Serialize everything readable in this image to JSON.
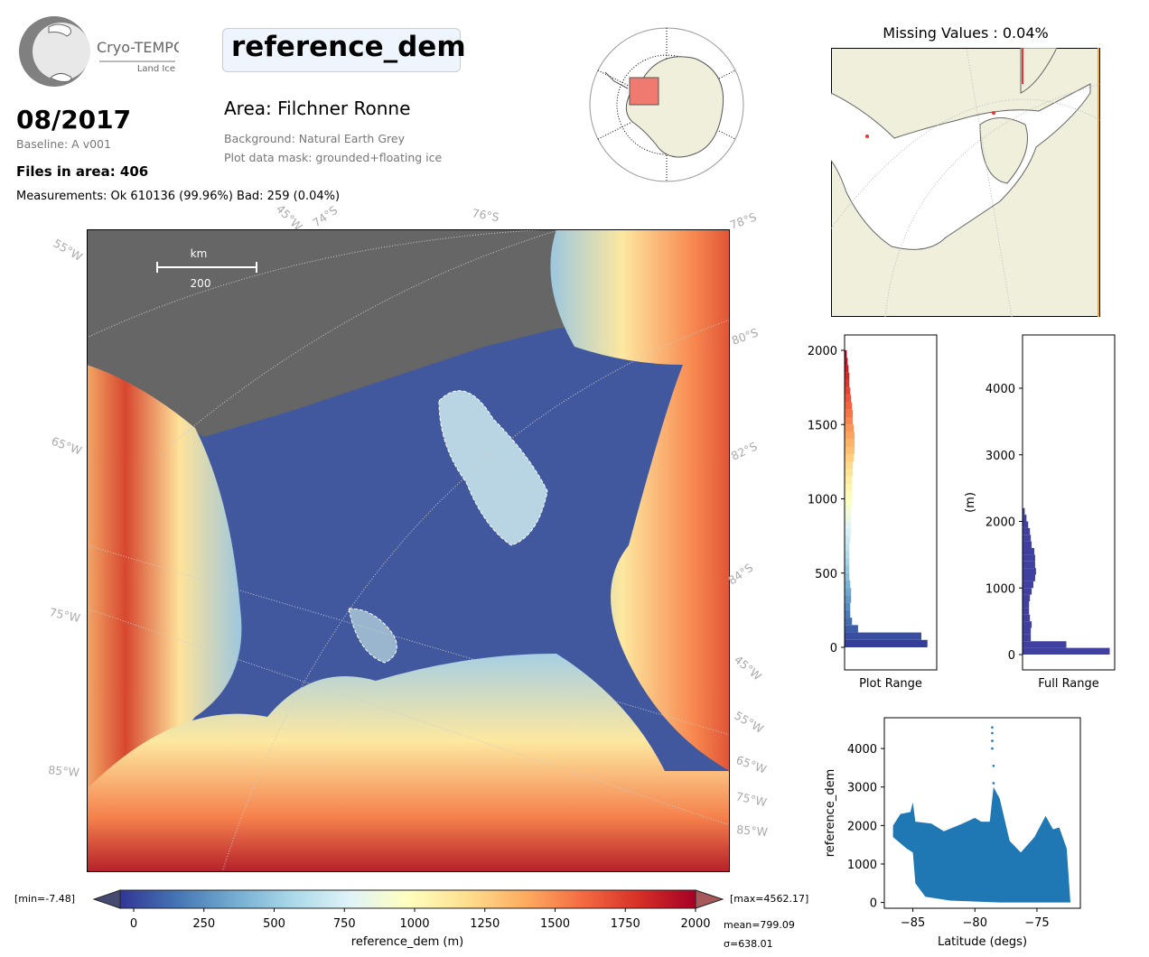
{
  "header": {
    "logo_text": "Cryo-TEMPO",
    "logo_subtext": "Land Ice",
    "title": "reference_dem",
    "date": "08/2017",
    "baseline": "Baseline: A v001",
    "files": "Files in area: 406",
    "measurements": "Measurements: Ok 610136 (99.96%) Bad: 259 (0.04%)",
    "area": "Area: Filchner Ronne",
    "background": "Background: Natural Earth Grey",
    "mask": "Plot data mask: grounded+floating ice"
  },
  "missing": {
    "title": "Missing Values : 0.04%"
  },
  "map": {
    "scale_unit": "km",
    "scale_value": "200",
    "grid_labels": {
      "l55w": "55°W",
      "t45w": "45°W",
      "t74s": "74°S",
      "t76s": "76°S",
      "r78s": "78°S",
      "r80s": "80°S",
      "r82s": "82°S",
      "r84s": "84°S",
      "r45w": "45°W",
      "r55w": "55°W",
      "r65w": "65°W",
      "r75w": "75°W",
      "r85w": "85°W",
      "l65w": "65°W",
      "l75w": "75°W",
      "l85w": "85°W"
    }
  },
  "colorbar": {
    "label": "reference_dem (m)",
    "min_label": "[min=-7.48]",
    "max_label": "[max=4562.17]",
    "mean_label": "mean=799.09",
    "sigma_label": "σ=638.01",
    "ticks": [
      "0",
      "250",
      "500",
      "750",
      "1000",
      "1250",
      "1500",
      "1750",
      "2000"
    ],
    "range": [
      0,
      2000
    ],
    "colormap_stops": [
      "#313695",
      "#4575b4",
      "#74add1",
      "#abd9e9",
      "#e0f3f8",
      "#ffffbf",
      "#fee090",
      "#fdae61",
      "#f46d43",
      "#d73027",
      "#a50026"
    ]
  },
  "chart_data": [
    {
      "type": "bar",
      "orientation": "horizontal",
      "title": "",
      "xlabel": "Plot Range",
      "ylabel": "",
      "ylim": [
        -140,
        2130
      ],
      "yticks": [
        "0",
        "500",
        "1000",
        "1500",
        "2000"
      ],
      "bin_start": 0,
      "bin_width": 50,
      "counts_relative": [
        0.95,
        0.88,
        0.15,
        0.08,
        0.06,
        0.06,
        0.07,
        0.07,
        0.06,
        0.05,
        0.05,
        0.05,
        0.05,
        0.05,
        0.06,
        0.07,
        0.07,
        0.07,
        0.07,
        0.08,
        0.08,
        0.08,
        0.08,
        0.09,
        0.09,
        0.1,
        0.11,
        0.11,
        0.11,
        0.1,
        0.09,
        0.09,
        0.08,
        0.07,
        0.06,
        0.05,
        0.05,
        0.04,
        0.03,
        0.02
      ]
    },
    {
      "type": "bar",
      "orientation": "horizontal",
      "title": "",
      "xlabel": "Full Range",
      "ylabel": "(m)",
      "ylim": [
        -100,
        4900
      ],
      "yticks": [
        "0",
        "1000",
        "2000",
        "3000",
        "4000"
      ],
      "bin_start": 0,
      "bin_width": 100,
      "color": "#4040a0",
      "counts_relative": [
        1.0,
        0.5,
        0.09,
        0.09,
        0.1,
        0.08,
        0.07,
        0.07,
        0.08,
        0.1,
        0.12,
        0.14,
        0.15,
        0.14,
        0.14,
        0.13,
        0.1,
        0.09,
        0.08,
        0.06,
        0.04,
        0.02
      ]
    },
    {
      "type": "scatter",
      "title": "",
      "xlabel": "Latitude (degs)",
      "ylabel": "reference_dem",
      "xlim": [
        -87.3,
        -71.5
      ],
      "ylim": [
        -150,
        4800
      ],
      "xticks": [
        "−85",
        "−80",
        "−75"
      ],
      "yticks": [
        "0",
        "1000",
        "2000",
        "3000",
        "4000"
      ],
      "color": "#1f77b4",
      "upper_envelope": [
        [
          -86.6,
          2000
        ],
        [
          -86,
          2300
        ],
        [
          -85.2,
          2350
        ],
        [
          -85,
          2600
        ],
        [
          -84.8,
          2100
        ],
        [
          -83.5,
          2050
        ],
        [
          -82.5,
          1850
        ],
        [
          -81,
          2050
        ],
        [
          -80,
          2200
        ],
        [
          -79.5,
          2100
        ],
        [
          -78.8,
          2100
        ],
        [
          -78.5,
          3000
        ],
        [
          -78,
          2700
        ],
        [
          -77.2,
          1600
        ],
        [
          -76.3,
          1300
        ],
        [
          -75.2,
          1700
        ],
        [
          -74.3,
          2250
        ],
        [
          -73.7,
          1900
        ],
        [
          -73.2,
          1950
        ],
        [
          -72.6,
          1400
        ],
        [
          -72.3,
          0
        ]
      ],
      "lower_envelope": [
        [
          -86.6,
          1700
        ],
        [
          -85.5,
          1400
        ],
        [
          -85,
          1300
        ],
        [
          -84.8,
          500
        ],
        [
          -84,
          150
        ],
        [
          -82,
          50
        ],
        [
          -78,
          0
        ],
        [
          -72.3,
          0
        ]
      ],
      "outliers": [
        [
          -78.6,
          4550
        ],
        [
          -78.6,
          4400
        ],
        [
          -78.6,
          4200
        ],
        [
          -78.6,
          4000
        ],
        [
          -78.5,
          3550
        ],
        [
          -78.5,
          3100
        ]
      ]
    }
  ]
}
